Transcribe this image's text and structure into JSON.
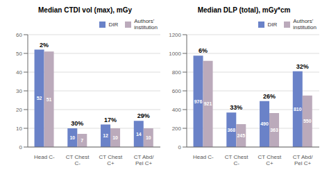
{
  "chart_data": [
    {
      "type": "bar",
      "title": "Median CTDI vol (max), mGy",
      "categories": [
        "Head C-",
        "CT Chest\nC-",
        "CT Chest\nC+",
        "CT Abd/\nPel C+"
      ],
      "series": [
        {
          "name": "DIR",
          "color": "#6a82c8",
          "values": [
            52,
            10,
            12,
            14
          ]
        },
        {
          "name": "Authors'\ninstitution",
          "color": "#bbaabb",
          "values": [
            51,
            7,
            10,
            10
          ]
        }
      ],
      "ylim": [
        0,
        60
      ],
      "yticks": [
        0,
        10,
        20,
        30,
        40,
        50,
        60
      ],
      "grid": true,
      "legend": "upper right",
      "data_labels": true,
      "annotations": [
        "2%",
        "30%",
        "17%",
        "29%"
      ]
    },
    {
      "type": "bar",
      "title": "Median DLP (total), mGy*cm",
      "categories": [
        "Head C-",
        "CT Chest\nC-",
        "CT Chest\nC+",
        "CT Abd/\nPel C+"
      ],
      "series": [
        {
          "name": "DIR",
          "color": "#6a82c8",
          "values": [
            976,
            368,
            490,
            810
          ]
        },
        {
          "name": "Authors'\ninstitution",
          "color": "#bbaabb",
          "values": [
            921,
            245,
            363,
            550
          ]
        }
      ],
      "ylim": [
        0,
        1200
      ],
      "yticks": [
        0,
        200,
        400,
        600,
        800,
        1000,
        1200
      ],
      "grid": true,
      "legend": "upper right",
      "data_labels": true,
      "annotations": [
        "6%",
        "33%",
        "26%",
        "32%"
      ]
    }
  ]
}
